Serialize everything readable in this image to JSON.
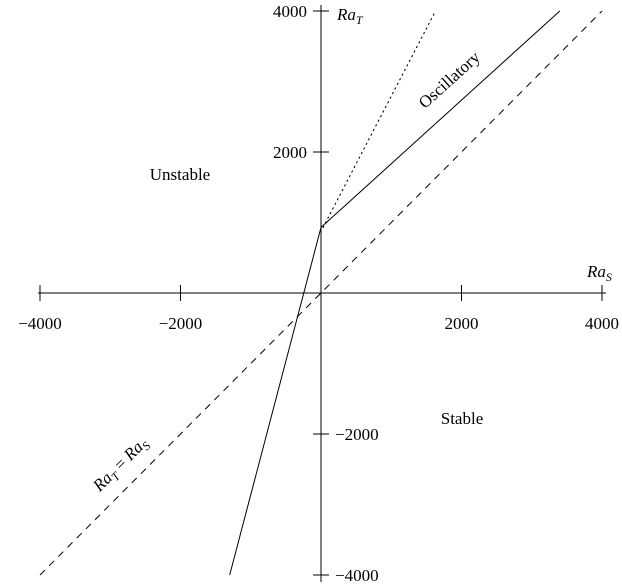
{
  "chart_data": {
    "type": "line",
    "title": "",
    "xlabel": "Ra_S",
    "ylabel": "Ra_T",
    "xlim": [
      -4000,
      4000
    ],
    "ylim": [
      -4000,
      4000
    ],
    "grid": false,
    "x_ticks": [
      -4000,
      -2000,
      2000,
      4000
    ],
    "x_tick_labels": [
      "−4000",
      "−2000",
      "2000",
      "4000"
    ],
    "y_ticks": [
      -4000,
      -2000,
      2000,
      4000
    ],
    "y_tick_labels": [
      "−4000",
      "−2000",
      "2000",
      "4000"
    ],
    "series": [
      {
        "style": "solid",
        "x": [
          -1300,
          0,
          3400
        ],
        "y": [
          -4000,
          930,
          4000
        ]
      },
      {
        "style": "dashed",
        "x": [
          -4000,
          4000
        ],
        "y": [
          -4000,
          4000
        ]
      },
      {
        "style": "dotted",
        "x": [
          30,
          1630
        ],
        "y": [
          930,
          4000
        ]
      }
    ],
    "annotations": {
      "unstable": "Unstable",
      "stable": "Stable",
      "oscillatory": "Oscillatory",
      "diagonal": "Ra_T = Ra_S"
    }
  }
}
